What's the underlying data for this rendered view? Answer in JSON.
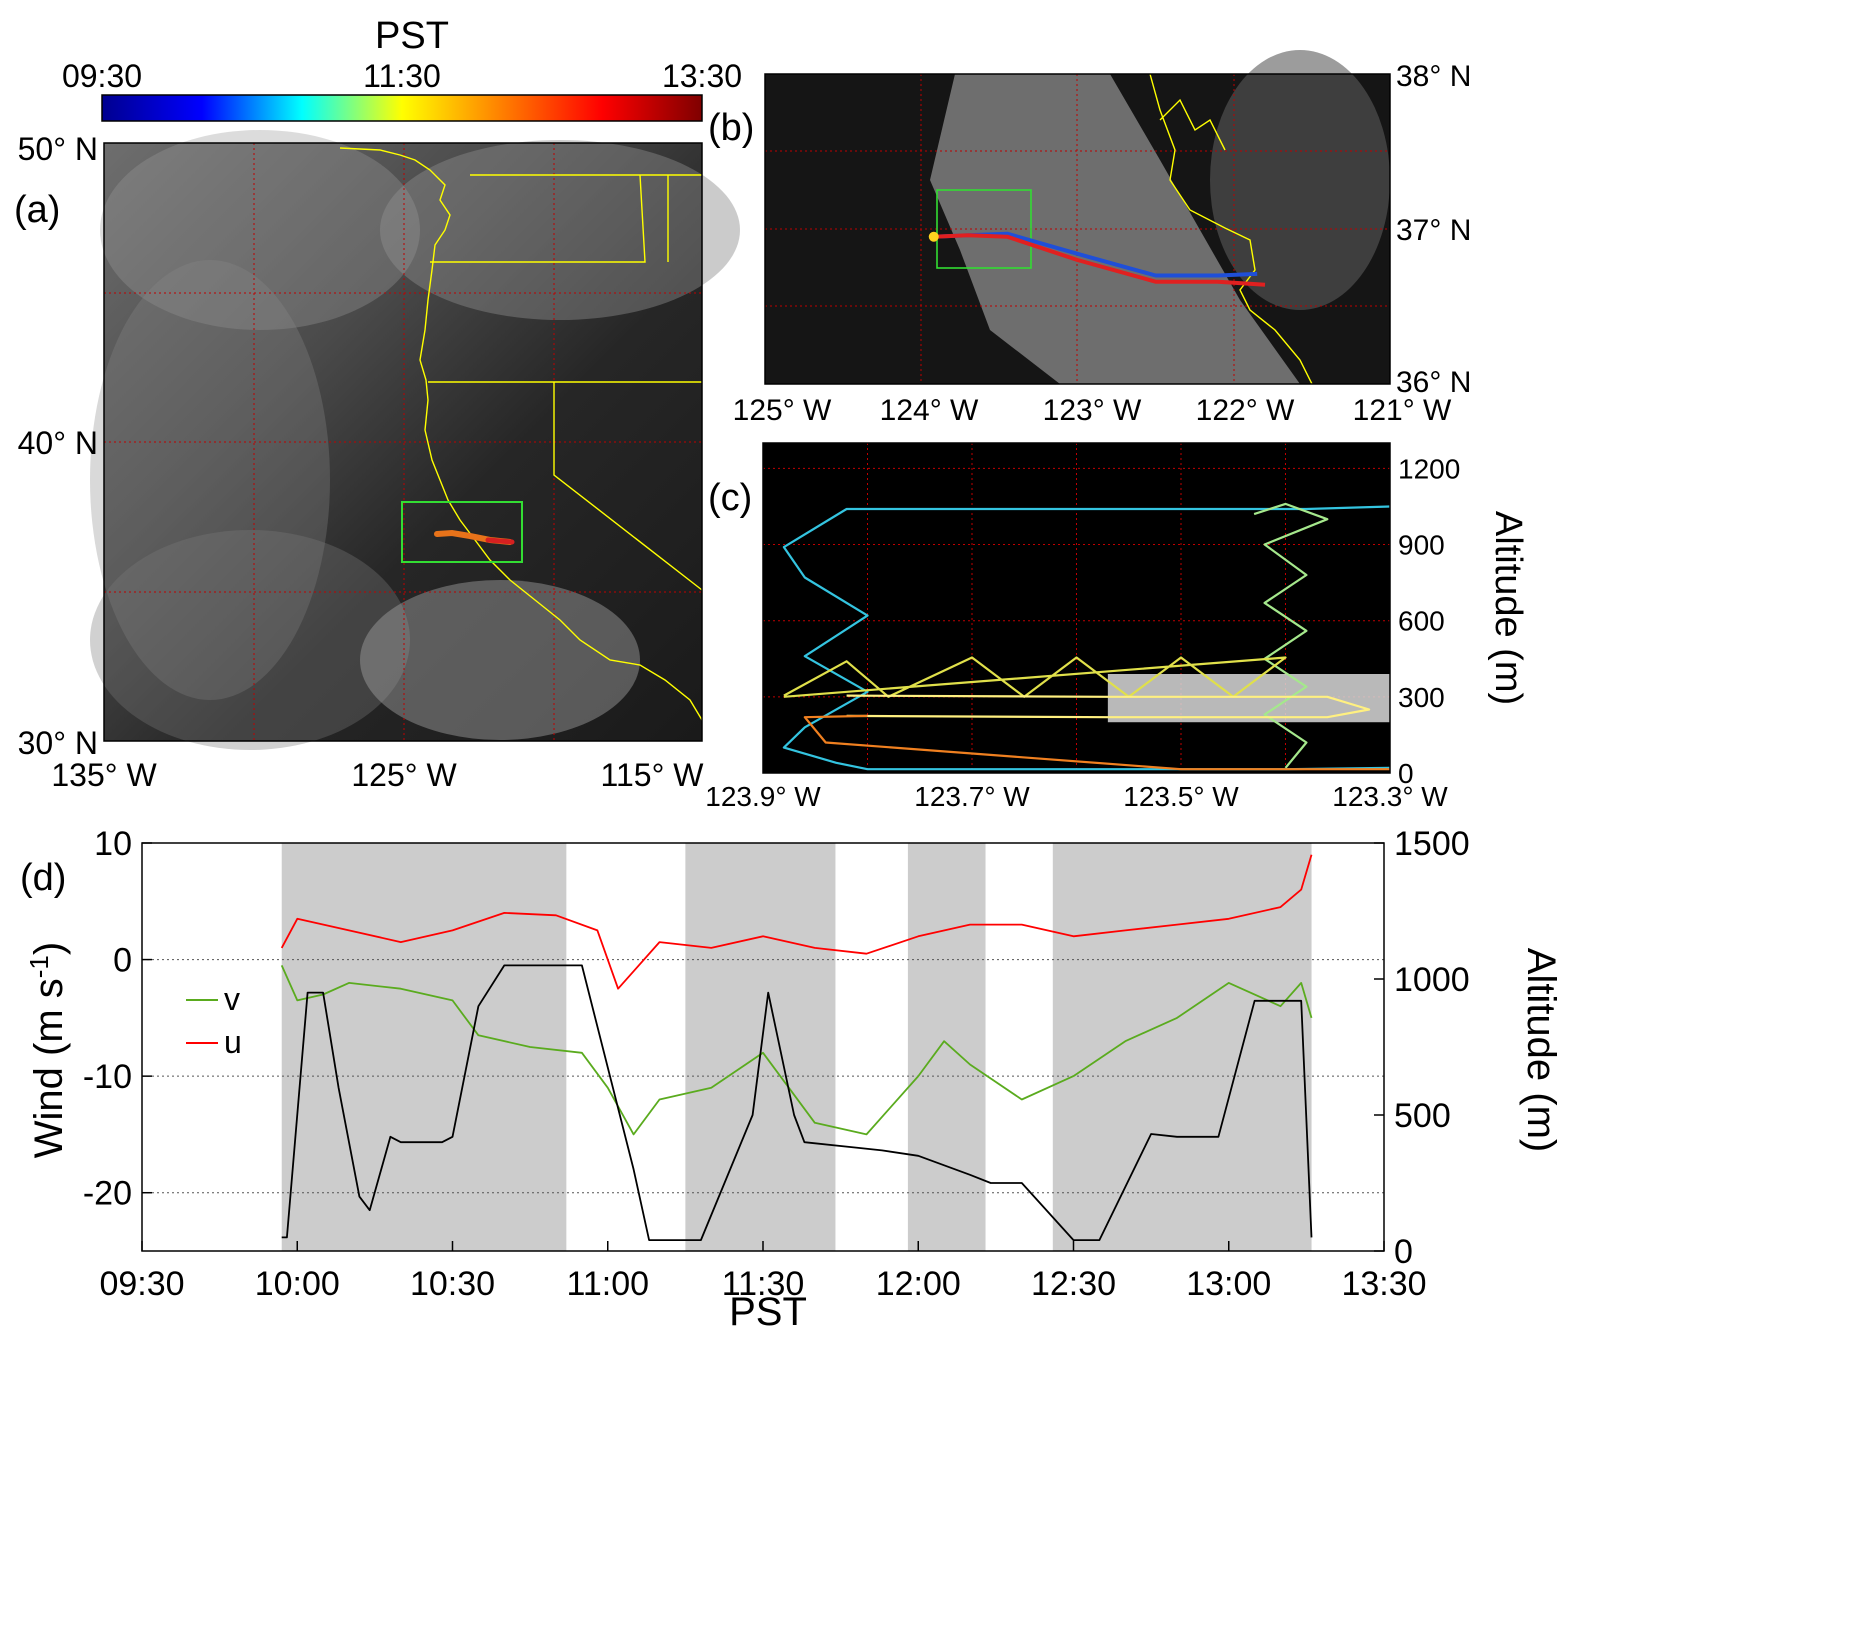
{
  "colorbar": {
    "title": "PST",
    "ticks": [
      "09:30",
      "11:30",
      "13:30"
    ],
    "colors": [
      "#00008f",
      "#0000ff",
      "#00ffff",
      "#ffff00",
      "#ff7f00",
      "#ff0000",
      "#7f0000"
    ]
  },
  "panel_a": {
    "label": "(a)",
    "y_ticks": [
      "50° N",
      "40° N",
      "30° N"
    ],
    "x_ticks": [
      "135° W",
      "125° W",
      "115° W"
    ]
  },
  "panel_b": {
    "label": "(b)",
    "y_ticks": [
      "38° N",
      "37° N",
      "36° N"
    ],
    "x_ticks": [
      "125° W",
      "124° W",
      "123° W",
      "122° W",
      "121° W"
    ]
  },
  "panel_c": {
    "label": "(c)",
    "ylabel": "Altitude (m)",
    "y_ticks": [
      "1200",
      "900",
      "600",
      "300",
      "0"
    ],
    "x_ticks": [
      "123.9° W",
      "123.7° W",
      "123.5° W",
      "123.3° W"
    ]
  },
  "panel_d": {
    "label": "(d)",
    "xlabel": "PST",
    "ylabel_left": "Wind (m s",
    "ylabel_left_sup": "-1",
    "ylabel_left_end": ")",
    "ylabel_right": "Altitude (m)",
    "legend": [
      "v",
      "u"
    ]
  },
  "chart_data": [
    {
      "type": "map",
      "panel": "a",
      "lat_range": [
        30,
        50
      ],
      "lon_range": [
        -135,
        -115
      ],
      "y_ticks": [
        50,
        40,
        30
      ],
      "x_ticks": [
        -135,
        -125,
        -115
      ],
      "box": {
        "lon": [
          -125.2,
          -121.2
        ],
        "lat": [
          36,
          38
        ]
      },
      "track_color": "#e8731a"
    },
    {
      "type": "map",
      "panel": "b",
      "lat_range": [
        36,
        38
      ],
      "lon_range": [
        -125,
        -121
      ],
      "y_ticks": [
        38,
        37,
        36
      ],
      "x_ticks": [
        -125,
        -124,
        -123,
        -122,
        -121
      ],
      "box": {
        "lon": [
          -124.1,
          -123.5
        ],
        "lat": [
          36.76,
          37.26
        ]
      },
      "track_out": {
        "lon": [
          -123.92,
          -123.7,
          -123.45,
          -123.0,
          -122.5,
          -122.1,
          -121.85
        ],
        "lat": [
          36.95,
          36.96,
          36.97,
          36.84,
          36.7,
          36.7,
          36.71
        ]
      },
      "track_back": {
        "lon": [
          -121.8,
          -122.1,
          -122.5,
          -123.0,
          -123.45,
          -123.7,
          -123.92
        ],
        "lat": [
          36.64,
          36.66,
          36.66,
          36.8,
          36.95,
          36.96,
          36.95
        ]
      }
    },
    {
      "type": "line",
      "panel": "c",
      "xlim": [
        -123.9,
        -123.3
      ],
      "ylim": [
        0,
        1300
      ],
      "x_ticks": [
        -123.9,
        -123.7,
        -123.5,
        -123.3
      ],
      "y_ticks": [
        0,
        300,
        600,
        900,
        1200
      ],
      "shaded": {
        "lon": [
          -123.57,
          -123.3
        ],
        "alt": [
          200,
          390
        ]
      },
      "series": [
        {
          "color": "#34c4e0",
          "lon": [
            -123.3,
            -123.38,
            -123.82,
            -123.88,
            -123.86,
            -123.8,
            -123.86,
            -123.8,
            -123.86,
            -123.88,
            -123.83,
            -123.8,
            -123.4,
            -123.3
          ],
          "alt": [
            1050,
            1040,
            1040,
            890,
            770,
            620,
            460,
            320,
            180,
            100,
            40,
            15,
            15,
            20
          ]
        },
        {
          "color": "#a5e88c",
          "lon": [
            -123.4,
            -123.38,
            -123.42,
            -123.38,
            -123.42,
            -123.38,
            -123.42,
            -123.38,
            -123.42,
            -123.36,
            -123.4,
            -123.43
          ],
          "alt": [
            20,
            120,
            230,
            340,
            450,
            560,
            670,
            780,
            900,
            1000,
            1060,
            1020
          ]
        },
        {
          "color": "#e0e04a",
          "lon": [
            -123.88,
            -123.82,
            -123.78,
            -123.7,
            -123.65,
            -123.6,
            -123.55,
            -123.5,
            -123.45,
            -123.4,
            -123.85,
            -123.88
          ],
          "alt": [
            305,
            440,
            300,
            455,
            300,
            455,
            300,
            455,
            300,
            455,
            310,
            300
          ]
        },
        {
          "color": "#fff080",
          "lon": [
            -123.82,
            -123.57,
            -123.36,
            -123.32,
            -123.36,
            -123.57,
            -123.82
          ],
          "alt": [
            305,
            300,
            300,
            250,
            220,
            220,
            225
          ]
        },
        {
          "color": "#f08020",
          "lon": [
            -123.8,
            -123.86,
            -123.84,
            -123.5,
            -123.3
          ],
          "alt": [
            225,
            220,
            120,
            15,
            15
          ]
        }
      ]
    },
    {
      "type": "line",
      "panel": "d",
      "x_ticks": [
        "09:30",
        "10:00",
        "10:30",
        "11:00",
        "11:30",
        "12:00",
        "12:30",
        "13:00",
        "13:30"
      ],
      "xlim": [
        "09:30",
        "13:30"
      ],
      "y_left_ticks": [
        10,
        0,
        -10,
        -20
      ],
      "ylim_left": [
        -25,
        10
      ],
      "y_right_ticks": [
        1500,
        1000,
        500,
        0
      ],
      "ylim_right": [
        0,
        1500
      ],
      "shaded_intervals": [
        [
          "09:57",
          "10:52"
        ],
        [
          "11:15",
          "11:44"
        ],
        [
          "11:58",
          "12:13"
        ],
        [
          "12:26",
          "13:16"
        ]
      ],
      "series": [
        {
          "name": "u",
          "color": "#ff0000",
          "axis": "left",
          "x": [
            "09:57",
            "10:00",
            "10:10",
            "10:20",
            "10:30",
            "10:40",
            "10:50",
            "10:58",
            "11:02",
            "11:10",
            "11:20",
            "11:30",
            "11:40",
            "11:50",
            "12:00",
            "12:10",
            "12:20",
            "12:30",
            "12:40",
            "12:50",
            "13:00",
            "13:10",
            "13:14",
            "13:16"
          ],
          "y": [
            1,
            3.5,
            2.5,
            1.5,
            2.5,
            4,
            3.8,
            2.5,
            -2.5,
            1.5,
            1,
            2,
            1,
            0.5,
            2,
            3,
            3,
            2,
            2.5,
            3,
            3.5,
            4.5,
            6,
            9
          ]
        },
        {
          "name": "v",
          "color": "#5aab1e",
          "axis": "left",
          "x": [
            "09:57",
            "10:00",
            "10:05",
            "10:10",
            "10:20",
            "10:30",
            "10:35",
            "10:45",
            "10:55",
            "11:00",
            "11:05",
            "11:10",
            "11:20",
            "11:30",
            "11:40",
            "11:50",
            "12:00",
            "12:05",
            "12:10",
            "12:20",
            "12:30",
            "12:40",
            "12:50",
            "13:00",
            "13:10",
            "13:14",
            "13:16"
          ],
          "y": [
            -0.5,
            -3.5,
            -3,
            -2,
            -2.5,
            -3.5,
            -6.5,
            -7.5,
            -8,
            -11,
            -15,
            -12,
            -11,
            -8,
            -14,
            -15,
            -10,
            -7,
            -9,
            -12,
            -10,
            -7,
            -5,
            -2,
            -4,
            -2,
            -5
          ]
        },
        {
          "name": "",
          "color": "#000000",
          "axis": "right",
          "x": [
            "09:57",
            "09:58",
            "10:02",
            "10:05",
            "10:08",
            "10:12",
            "10:14",
            "10:18",
            "10:20",
            "10:28",
            "10:30",
            "10:35",
            "10:40",
            "10:48",
            "10:52",
            "10:55",
            "11:05",
            "11:08",
            "11:15",
            "11:18",
            "11:28",
            "11:31",
            "11:36",
            "11:38",
            "11:48",
            "11:53",
            "12:00",
            "12:10",
            "12:14",
            "12:18",
            "12:20",
            "12:30",
            "12:33",
            "12:35",
            "12:45",
            "12:50",
            "12:53",
            "12:58",
            "13:05",
            "13:14",
            "13:16"
          ],
          "y": [
            50,
            50,
            950,
            950,
            600,
            200,
            150,
            420,
            400,
            400,
            420,
            900,
            1050,
            1050,
            1050,
            1050,
            300,
            40,
            40,
            40,
            500,
            950,
            500,
            400,
            380,
            370,
            350,
            280,
            250,
            250,
            250,
            40,
            40,
            40,
            430,
            420,
            420,
            420,
            920,
            920,
            50
          ]
        }
      ]
    }
  ]
}
